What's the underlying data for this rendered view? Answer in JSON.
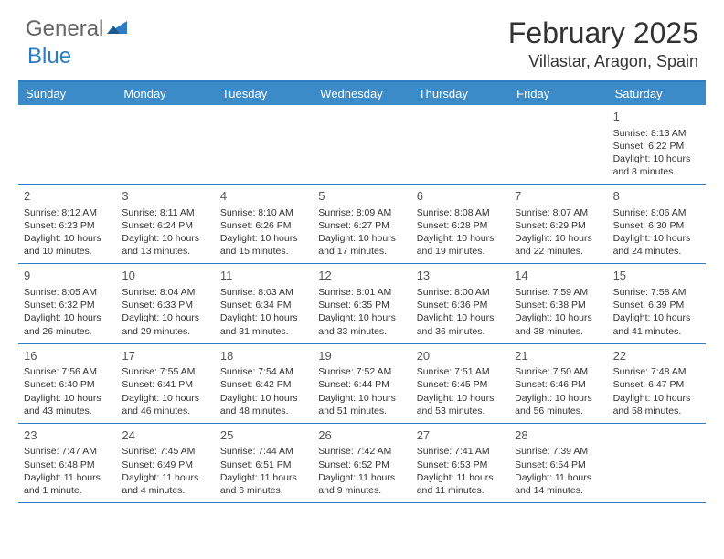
{
  "logo": {
    "text1": "General",
    "text2": "Blue"
  },
  "title": "February 2025",
  "location": "Villastar, Aragon, Spain",
  "colors": {
    "header_bg": "#3b8bc9",
    "border": "#2d7bc0",
    "text": "#333333",
    "logo_gray": "#666666",
    "logo_blue": "#2d7bc0",
    "white": "#ffffff"
  },
  "weekdays": [
    "Sunday",
    "Monday",
    "Tuesday",
    "Wednesday",
    "Thursday",
    "Friday",
    "Saturday"
  ],
  "first_weekday_index": 6,
  "days": [
    {
      "n": 1,
      "sunrise": "8:13 AM",
      "sunset": "6:22 PM",
      "daylight": "10 hours and 8 minutes."
    },
    {
      "n": 2,
      "sunrise": "8:12 AM",
      "sunset": "6:23 PM",
      "daylight": "10 hours and 10 minutes."
    },
    {
      "n": 3,
      "sunrise": "8:11 AM",
      "sunset": "6:24 PM",
      "daylight": "10 hours and 13 minutes."
    },
    {
      "n": 4,
      "sunrise": "8:10 AM",
      "sunset": "6:26 PM",
      "daylight": "10 hours and 15 minutes."
    },
    {
      "n": 5,
      "sunrise": "8:09 AM",
      "sunset": "6:27 PM",
      "daylight": "10 hours and 17 minutes."
    },
    {
      "n": 6,
      "sunrise": "8:08 AM",
      "sunset": "6:28 PM",
      "daylight": "10 hours and 19 minutes."
    },
    {
      "n": 7,
      "sunrise": "8:07 AM",
      "sunset": "6:29 PM",
      "daylight": "10 hours and 22 minutes."
    },
    {
      "n": 8,
      "sunrise": "8:06 AM",
      "sunset": "6:30 PM",
      "daylight": "10 hours and 24 minutes."
    },
    {
      "n": 9,
      "sunrise": "8:05 AM",
      "sunset": "6:32 PM",
      "daylight": "10 hours and 26 minutes."
    },
    {
      "n": 10,
      "sunrise": "8:04 AM",
      "sunset": "6:33 PM",
      "daylight": "10 hours and 29 minutes."
    },
    {
      "n": 11,
      "sunrise": "8:03 AM",
      "sunset": "6:34 PM",
      "daylight": "10 hours and 31 minutes."
    },
    {
      "n": 12,
      "sunrise": "8:01 AM",
      "sunset": "6:35 PM",
      "daylight": "10 hours and 33 minutes."
    },
    {
      "n": 13,
      "sunrise": "8:00 AM",
      "sunset": "6:36 PM",
      "daylight": "10 hours and 36 minutes."
    },
    {
      "n": 14,
      "sunrise": "7:59 AM",
      "sunset": "6:38 PM",
      "daylight": "10 hours and 38 minutes."
    },
    {
      "n": 15,
      "sunrise": "7:58 AM",
      "sunset": "6:39 PM",
      "daylight": "10 hours and 41 minutes."
    },
    {
      "n": 16,
      "sunrise": "7:56 AM",
      "sunset": "6:40 PM",
      "daylight": "10 hours and 43 minutes."
    },
    {
      "n": 17,
      "sunrise": "7:55 AM",
      "sunset": "6:41 PM",
      "daylight": "10 hours and 46 minutes."
    },
    {
      "n": 18,
      "sunrise": "7:54 AM",
      "sunset": "6:42 PM",
      "daylight": "10 hours and 48 minutes."
    },
    {
      "n": 19,
      "sunrise": "7:52 AM",
      "sunset": "6:44 PM",
      "daylight": "10 hours and 51 minutes."
    },
    {
      "n": 20,
      "sunrise": "7:51 AM",
      "sunset": "6:45 PM",
      "daylight": "10 hours and 53 minutes."
    },
    {
      "n": 21,
      "sunrise": "7:50 AM",
      "sunset": "6:46 PM",
      "daylight": "10 hours and 56 minutes."
    },
    {
      "n": 22,
      "sunrise": "7:48 AM",
      "sunset": "6:47 PM",
      "daylight": "10 hours and 58 minutes."
    },
    {
      "n": 23,
      "sunrise": "7:47 AM",
      "sunset": "6:48 PM",
      "daylight": "11 hours and 1 minute."
    },
    {
      "n": 24,
      "sunrise": "7:45 AM",
      "sunset": "6:49 PM",
      "daylight": "11 hours and 4 minutes."
    },
    {
      "n": 25,
      "sunrise": "7:44 AM",
      "sunset": "6:51 PM",
      "daylight": "11 hours and 6 minutes."
    },
    {
      "n": 26,
      "sunrise": "7:42 AM",
      "sunset": "6:52 PM",
      "daylight": "11 hours and 9 minutes."
    },
    {
      "n": 27,
      "sunrise": "7:41 AM",
      "sunset": "6:53 PM",
      "daylight": "11 hours and 11 minutes."
    },
    {
      "n": 28,
      "sunrise": "7:39 AM",
      "sunset": "6:54 PM",
      "daylight": "11 hours and 14 minutes."
    }
  ],
  "labels": {
    "sunrise": "Sunrise:",
    "sunset": "Sunset:",
    "daylight": "Daylight:"
  }
}
